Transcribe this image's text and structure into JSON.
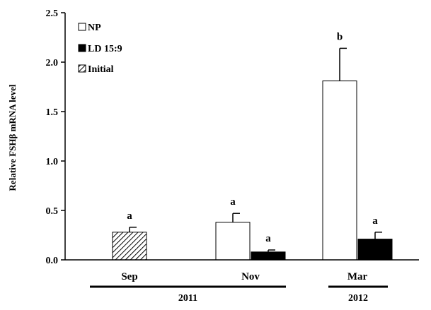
{
  "chart_data": {
    "type": "bar",
    "title": "",
    "xlabel": "",
    "ylabel": "Relative FSHβ mRNA level",
    "ylim": [
      0,
      2.5
    ],
    "yticks": [
      "0.0",
      "0.5",
      "1.0",
      "1.5",
      "2.0",
      "2.5"
    ],
    "grid": false,
    "legend_position": "top-left",
    "categories": [
      "Sep",
      "Nov",
      "Mar"
    ],
    "year_groups": [
      {
        "label": "2011",
        "categories": [
          "Sep",
          "Nov"
        ]
      },
      {
        "label": "2012",
        "categories": [
          "Mar"
        ]
      }
    ],
    "series": [
      {
        "name": "NP",
        "fill": "#ffffff",
        "pattern": "none",
        "values": [
          null,
          0.38,
          1.81
        ],
        "errors": [
          null,
          0.09,
          0.33
        ],
        "significance": [
          null,
          "a",
          "b"
        ]
      },
      {
        "name": "LD 15:9",
        "fill": "#000000",
        "pattern": "none",
        "values": [
          null,
          0.08,
          0.21
        ],
        "errors": [
          null,
          0.02,
          0.07
        ],
        "significance": [
          null,
          "a",
          "a"
        ]
      },
      {
        "name": "Initial",
        "fill": "#ffffff",
        "pattern": "hatch",
        "values": [
          0.28,
          null,
          null
        ],
        "errors": [
          0.05,
          null,
          null
        ],
        "significance": [
          "a",
          null,
          null
        ]
      }
    ]
  }
}
